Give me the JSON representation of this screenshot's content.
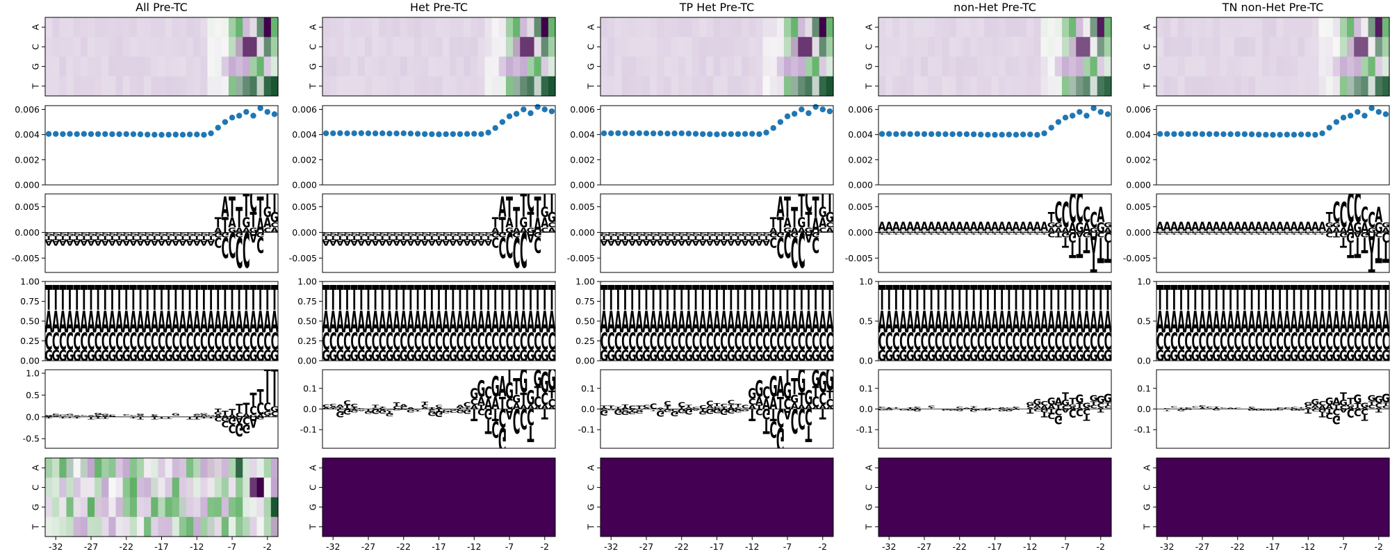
{
  "colors": {
    "A": "#008000",
    "C": "#0000ff",
    "G": "#ffa500",
    "T": "#ff0000",
    "dots": "#1f77b4",
    "heat_neg": "#40004b",
    "heat_mid": "#f7f7f7",
    "heat_pos": "#00441b",
    "empty": "#440154"
  },
  "chart_data": {
    "type": "heatmap",
    "columns": [
      "All Pre-TC",
      "Het Pre-TC",
      "TP Het Pre-TC",
      "non-Het Pre-TC",
      "TN non-Het Pre-TC"
    ],
    "bases": [
      "A",
      "C",
      "G",
      "T"
    ],
    "positions": [
      -33,
      -32,
      -31,
      -30,
      -29,
      -28,
      -27,
      -26,
      -25,
      -24,
      -23,
      -22,
      -21,
      -20,
      -19,
      -18,
      -17,
      -16,
      -15,
      -14,
      -13,
      -12,
      -11,
      -10,
      -9,
      -8,
      -7,
      -6,
      -5,
      -4,
      -3,
      -2,
      -1
    ],
    "x_tick_labels": [
      "-32",
      "-27",
      "-22",
      "-17",
      "-12",
      "-7",
      "-2"
    ],
    "x_tick_values": [
      -32,
      -27,
      -22,
      -17,
      -12,
      -7,
      -2
    ],
    "rows": [
      {
        "kind": "heatmap",
        "yticks": [
          "A",
          "C",
          "G",
          "T"
        ]
      },
      {
        "kind": "scatter",
        "ylim": [
          0,
          0.0063
        ],
        "yticks": [
          "0.000",
          "0.002",
          "0.004",
          "0.006"
        ],
        "ytick_values": [
          0,
          0.002,
          0.004,
          0.006
        ],
        "series": [
          {
            "values": [
              0.00405,
              0.00405,
              0.00404,
              0.00405,
              0.00404,
              0.00405,
              0.00404,
              0.00404,
              0.00404,
              0.00403,
              0.00403,
              0.00404,
              0.00403,
              0.00402,
              0.004,
              0.00399,
              0.00398,
              0.00399,
              0.004,
              0.00399,
              0.00401,
              0.00401,
              0.00398,
              0.0041,
              0.00455,
              0.005,
              0.00535,
              0.0055,
              0.0058,
              0.0055,
              0.0061,
              0.0058,
              0.00562
            ]
          },
          {
            "values": [
              0.0041,
              0.0041,
              0.00411,
              0.0041,
              0.0041,
              0.00411,
              0.0041,
              0.00409,
              0.0041,
              0.00408,
              0.00409,
              0.0041,
              0.00408,
              0.00406,
              0.00404,
              0.00403,
              0.00402,
              0.00403,
              0.00404,
              0.00404,
              0.00405,
              0.00406,
              0.00404,
              0.00416,
              0.00452,
              0.005,
              0.00545,
              0.00565,
              0.006,
              0.0057,
              0.0062,
              0.006,
              0.00585
            ]
          },
          {
            "values": [
              0.0041,
              0.0041,
              0.00411,
              0.0041,
              0.0041,
              0.00411,
              0.0041,
              0.00409,
              0.0041,
              0.00408,
              0.00409,
              0.0041,
              0.00408,
              0.00406,
              0.00404,
              0.00403,
              0.00402,
              0.00403,
              0.00404,
              0.00404,
              0.00405,
              0.00406,
              0.00404,
              0.00416,
              0.00452,
              0.005,
              0.00545,
              0.00565,
              0.006,
              0.0057,
              0.0062,
              0.006,
              0.00585
            ]
          },
          {
            "values": [
              0.00405,
              0.00405,
              0.00404,
              0.00405,
              0.00404,
              0.00405,
              0.00404,
              0.00404,
              0.00404,
              0.00403,
              0.00403,
              0.00404,
              0.00403,
              0.00402,
              0.004,
              0.00399,
              0.00398,
              0.00399,
              0.004,
              0.00399,
              0.00401,
              0.00401,
              0.00398,
              0.0041,
              0.00455,
              0.005,
              0.00535,
              0.0055,
              0.0058,
              0.0055,
              0.0061,
              0.0058,
              0.00562
            ]
          },
          {
            "values": [
              0.00405,
              0.00405,
              0.00404,
              0.00405,
              0.00404,
              0.00405,
              0.00404,
              0.00404,
              0.00404,
              0.00403,
              0.00403,
              0.00404,
              0.00403,
              0.00402,
              0.004,
              0.00399,
              0.00398,
              0.00399,
              0.004,
              0.00399,
              0.00401,
              0.00401,
              0.00398,
              0.0041,
              0.00455,
              0.005,
              0.00535,
              0.0055,
              0.0058,
              0.0055,
              0.0061,
              0.0058,
              0.00562
            ]
          }
        ]
      },
      {
        "kind": "logo",
        "ylim": [
          -0.0078,
          0.0075
        ],
        "yticks": [
          "-0.005",
          "0.000",
          "0.005"
        ],
        "ytick_values": [
          -0.005,
          0,
          0.005
        ]
      },
      {
        "kind": "logo",
        "ylim": [
          0,
          1.0
        ],
        "yticks": [
          "0.00",
          "0.25",
          "0.50",
          "0.75",
          "1.00"
        ],
        "ytick_values": [
          0,
          0.25,
          0.5,
          0.75,
          1.0
        ],
        "ytick_labels_right_cols": [
          "0.0",
          "0.5",
          "1.0"
        ],
        "ytick_values_right_cols": [
          0,
          0.5,
          1.0
        ]
      },
      {
        "kind": "logo",
        "ylim_first": [
          -0.72,
          1.08
        ],
        "yticks_first": [
          "-0.5",
          "0.0",
          "0.5",
          "1.0"
        ],
        "ytick_values_first": [
          -0.5,
          0,
          0.5,
          1.0
        ],
        "ylim": [
          -0.19,
          0.19
        ],
        "yticks": [
          "-0.1",
          "0.0",
          "0.1"
        ],
        "ytick_values": [
          -0.1,
          0,
          0.1
        ]
      },
      {
        "kind": "heatmap",
        "yticks": [
          "A",
          "C",
          "G",
          "T"
        ]
      }
    ]
  }
}
